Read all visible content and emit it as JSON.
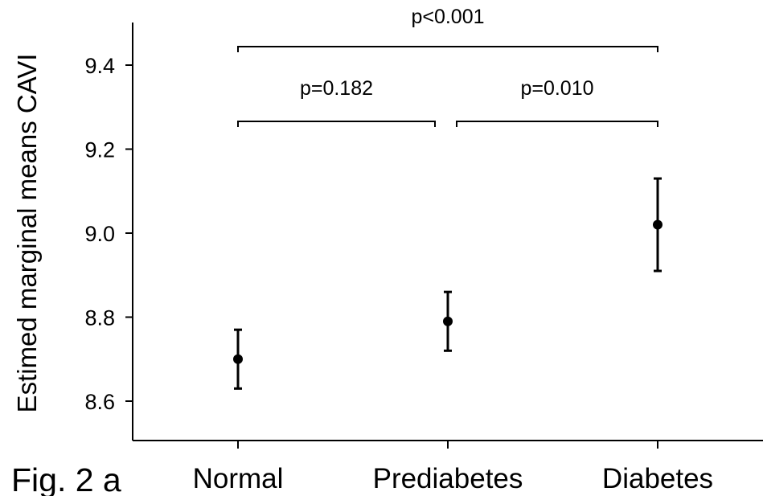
{
  "figure_label": "Fig. 2 a",
  "chart_data": {
    "type": "scatter",
    "title": "",
    "xlabel": "",
    "ylabel": "Estimed marginal means CAVI",
    "categories": [
      "Normal",
      "Prediabetes",
      "Diabetes"
    ],
    "means": [
      8.7,
      8.79,
      9.02
    ],
    "lower": [
      8.63,
      8.72,
      8.91
    ],
    "upper": [
      8.77,
      8.86,
      9.13
    ],
    "ylim": [
      8.5,
      9.5
    ],
    "yticks": [
      "8.6",
      "8.8",
      "9.0",
      "9.2",
      "9.4"
    ],
    "grid": false,
    "comparisons": [
      {
        "from": 0,
        "to": 2,
        "label": "p<0.001"
      },
      {
        "from": 0,
        "to": 1,
        "label": "p=0.182"
      },
      {
        "from": 1,
        "to": 2,
        "label": "p=0.010"
      }
    ]
  }
}
